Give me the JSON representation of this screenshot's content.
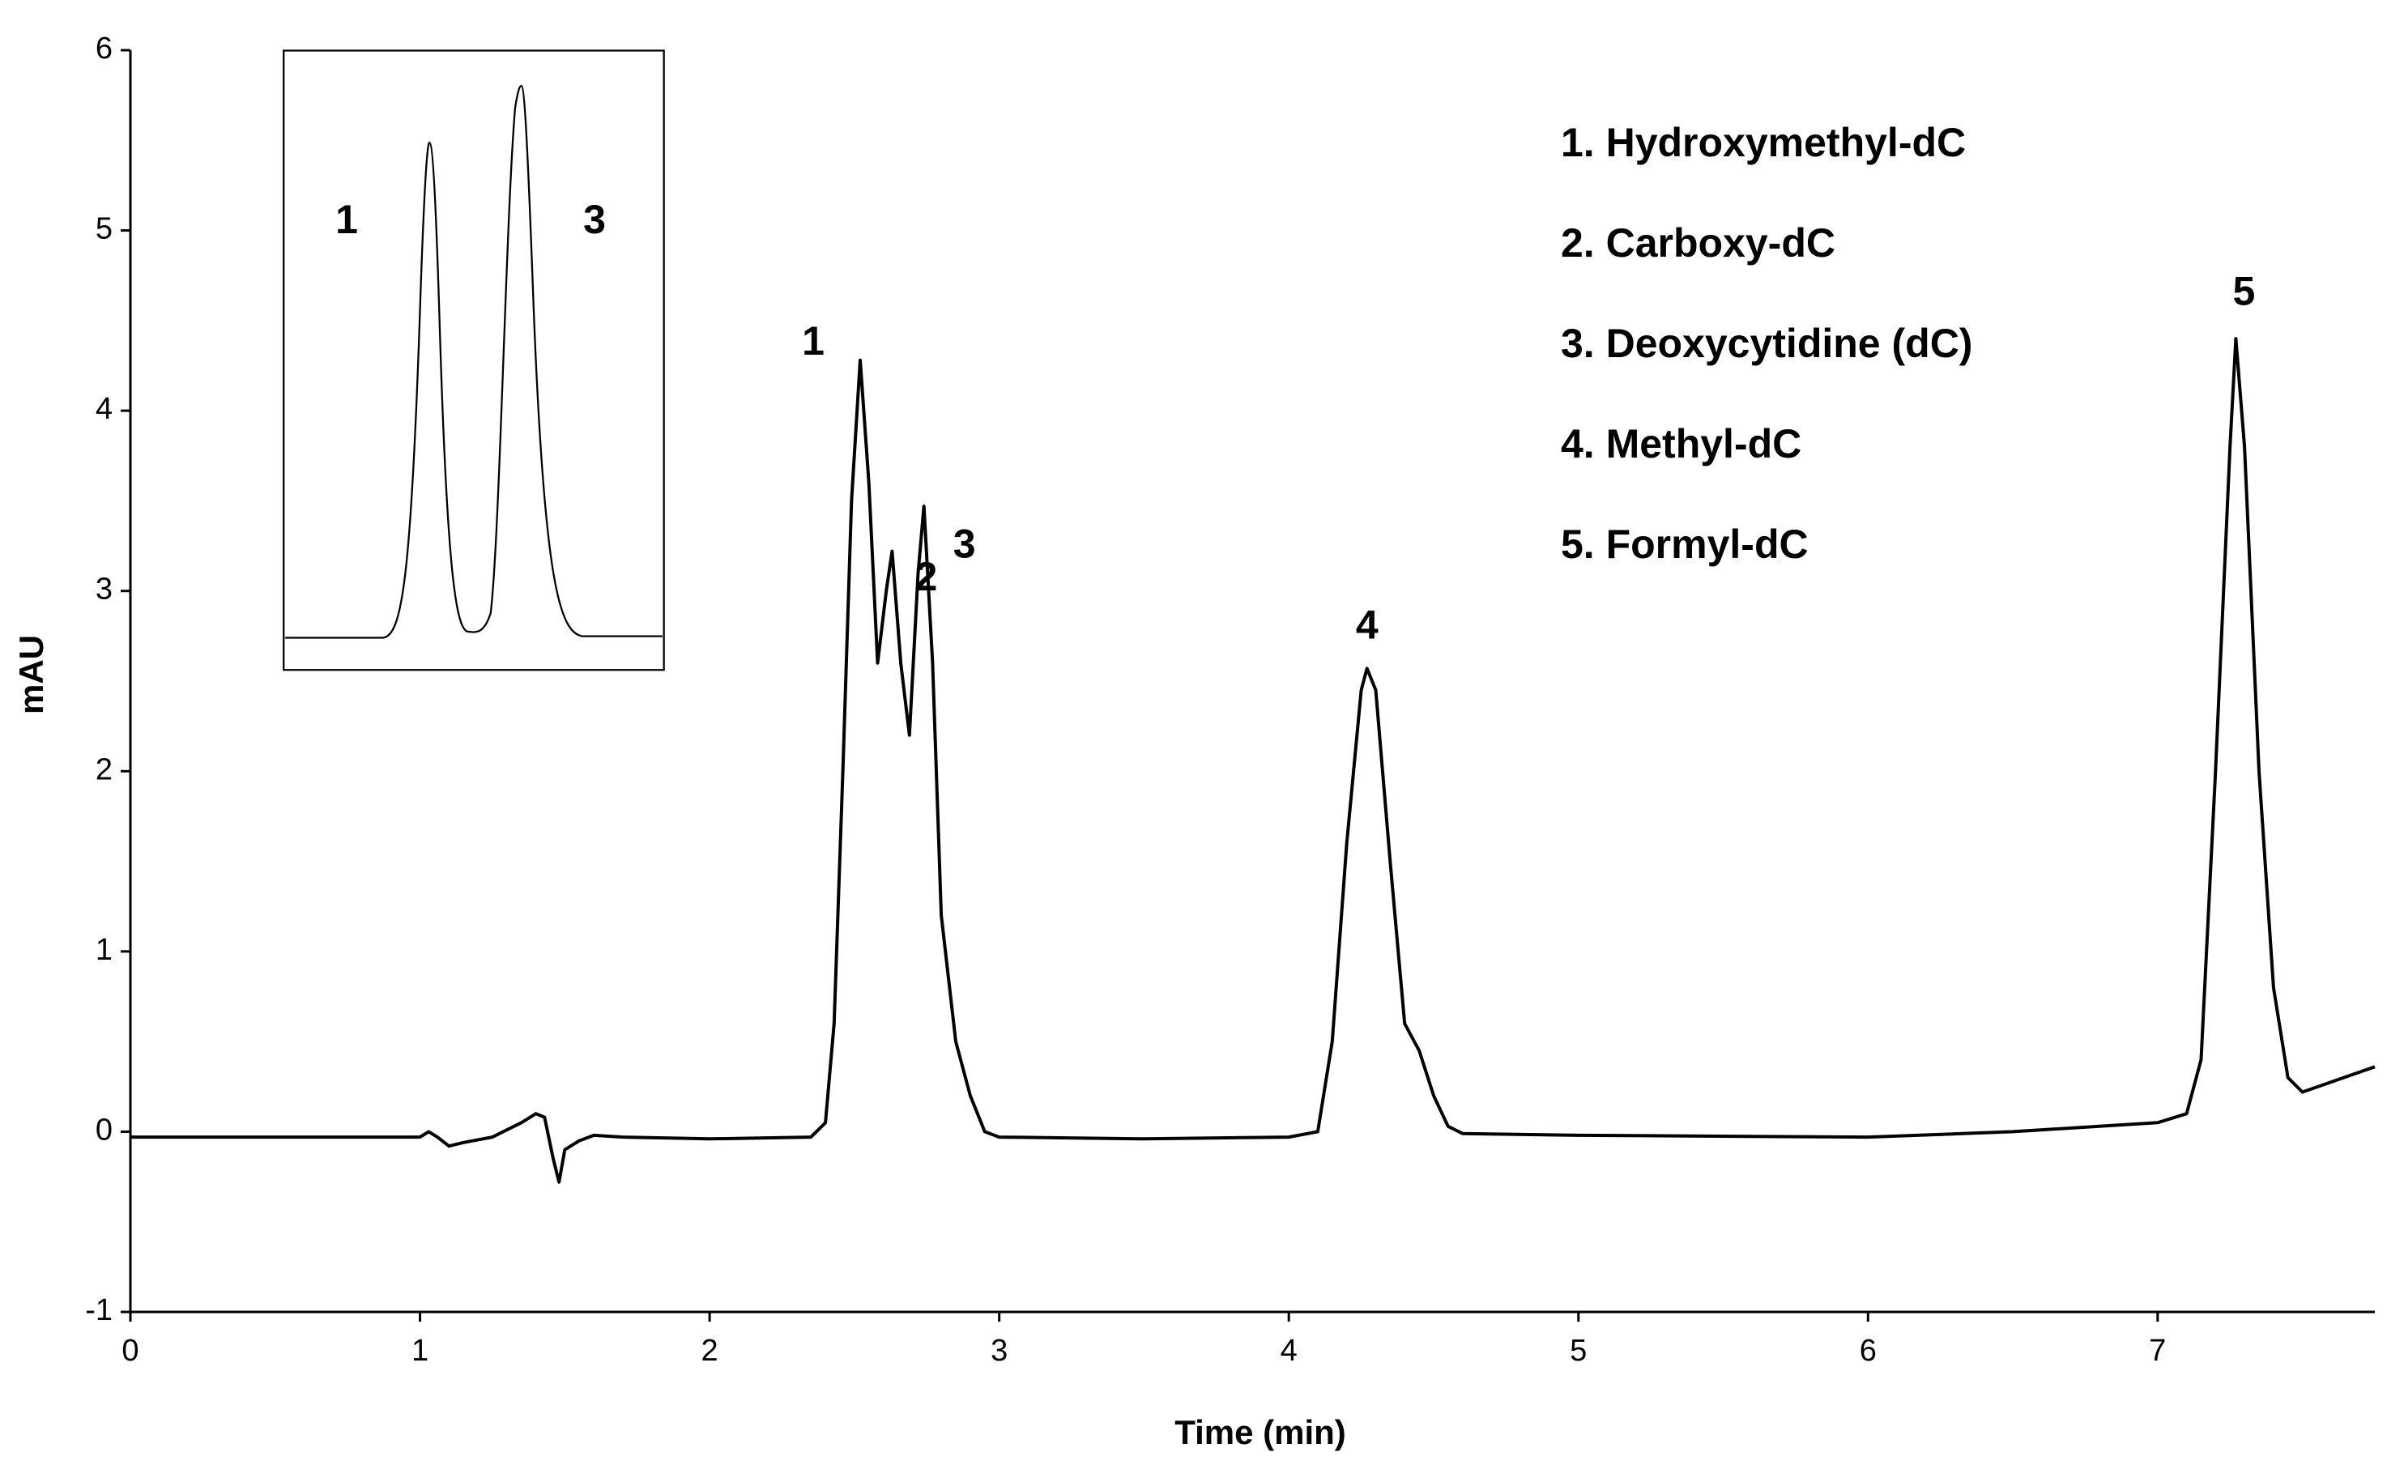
{
  "chart_data": {
    "type": "line",
    "x_label": "Time (min)",
    "y_label": "mAU",
    "xlim": [
      0,
      7.75
    ],
    "ylim": [
      -1,
      6
    ],
    "xticks": [
      0,
      1,
      2,
      3,
      4,
      5,
      6,
      7
    ],
    "yticks": [
      -1,
      0,
      1,
      2,
      3,
      4,
      5,
      6
    ],
    "series": [
      {
        "color": "#000000",
        "x": [
          0,
          0.5,
          1.0,
          1.03,
          1.06,
          1.1,
          1.15,
          1.25,
          1.35,
          1.4,
          1.43,
          1.46,
          1.48,
          1.5,
          1.55,
          1.6,
          1.7,
          2.0,
          2.35,
          2.4,
          2.43,
          2.46,
          2.49,
          2.52,
          2.55,
          2.58,
          2.61,
          2.63,
          2.66,
          2.69,
          2.72,
          2.74,
          2.77,
          2.8,
          2.85,
          2.9,
          2.95,
          3.0,
          3.5,
          4.0,
          4.1,
          4.15,
          4.2,
          4.25,
          4.27,
          4.3,
          4.35,
          4.4,
          4.45,
          4.5,
          4.55,
          4.6,
          5.0,
          6.0,
          6.5,
          7.0,
          7.1,
          7.15,
          7.2,
          7.25,
          7.27,
          7.3,
          7.35,
          7.4,
          7.45,
          7.5,
          7.75
        ],
        "values": [
          -0.03,
          -0.03,
          -0.03,
          0.0,
          -0.03,
          -0.08,
          -0.06,
          -0.03,
          0.05,
          0.1,
          0.08,
          -0.15,
          -0.28,
          -0.1,
          -0.05,
          -0.02,
          -0.03,
          -0.04,
          -0.03,
          0.05,
          0.6,
          2.0,
          3.5,
          4.28,
          3.6,
          2.6,
          3.0,
          3.22,
          2.6,
          2.2,
          3.1,
          3.47,
          2.6,
          1.2,
          0.5,
          0.2,
          0.0,
          -0.03,
          -0.04,
          -0.03,
          0.0,
          0.5,
          1.6,
          2.45,
          2.57,
          2.45,
          1.5,
          0.6,
          0.45,
          0.2,
          0.03,
          -0.01,
          -0.02,
          -0.03,
          0.0,
          0.05,
          0.1,
          0.4,
          2.0,
          3.8,
          4.4,
          3.8,
          2.0,
          0.8,
          0.3,
          0.22,
          0.36
        ]
      }
    ],
    "peak_labels": [
      {
        "label": "1",
        "x": 2.52,
        "y": 4.28
      },
      {
        "label": "2",
        "x": 2.63,
        "y": 3.22
      },
      {
        "label": "3",
        "x": 2.74,
        "y": 3.47
      },
      {
        "label": "4",
        "x": 4.27,
        "y": 2.57
      },
      {
        "label": "5",
        "x": 7.27,
        "y": 4.4
      }
    ],
    "legend_entries": [
      "1. Hydroxymethyl-dC",
      "2. Carboxy-dC",
      "3. Deoxycytidine (dC)",
      "4. Methyl-dC",
      "5. Formyl-dC"
    ]
  },
  "inset": {
    "labels": [
      "1",
      "3"
    ]
  }
}
